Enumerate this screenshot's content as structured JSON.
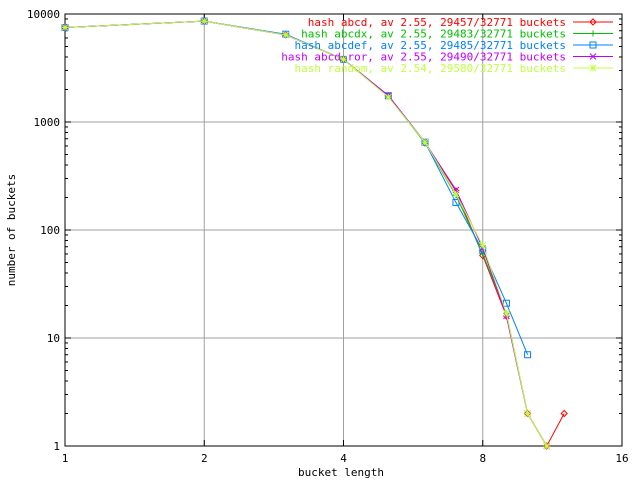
{
  "chart_data": {
    "type": "line",
    "title": "",
    "xlabel": "bucket length",
    "ylabel": "number of buckets",
    "x_scale": "log2",
    "y_scale": "log10",
    "xlim": [
      1,
      16
    ],
    "ylim": [
      1,
      10000
    ],
    "grid": true,
    "legend_position": "top-right",
    "x_ticks": [
      "1",
      "2",
      "4",
      "8",
      "16"
    ],
    "y_ticks": [
      "1",
      "10",
      "100",
      "1000",
      "10000"
    ],
    "series": [
      {
        "name": "hash abcd, av 2.55, 29457/32771 buckets",
        "color": "#ff0000",
        "marker": "diamond",
        "points": [
          [
            1,
            7500
          ],
          [
            2,
            8600
          ],
          [
            3,
            6400
          ],
          [
            4,
            3800
          ],
          [
            5,
            1750
          ],
          [
            6,
            640
          ],
          [
            7,
            230
          ],
          [
            8,
            58
          ],
          [
            9,
            16
          ],
          [
            10,
            2
          ],
          [
            11,
            1
          ],
          [
            12,
            2
          ]
        ]
      },
      {
        "name": "hash abcdx, av 2.55, 29483/32771 buckets",
        "color": "#00c000",
        "marker": "plus",
        "points": [
          [
            1,
            7500
          ],
          [
            2,
            8600
          ],
          [
            3,
            6400
          ],
          [
            4,
            3800
          ],
          [
            5,
            1720
          ],
          [
            6,
            640
          ],
          [
            7,
            210
          ],
          [
            8,
            60
          ],
          [
            9,
            17
          ],
          [
            10,
            2
          ],
          [
            11,
            1
          ]
        ]
      },
      {
        "name": "hash abcdef, av 2.55, 29485/32771 buckets",
        "color": "#0080ff",
        "marker": "square",
        "points": [
          [
            1,
            7500
          ],
          [
            2,
            8600
          ],
          [
            3,
            6500
          ],
          [
            4,
            3800
          ],
          [
            5,
            1750
          ],
          [
            6,
            650
          ],
          [
            7,
            180
          ],
          [
            8,
            65
          ],
          [
            9,
            21
          ],
          [
            10,
            7
          ]
        ]
      },
      {
        "name": "hash abcd ror, av 2.55, 29490/32771 buckets",
        "color": "#c000ff",
        "marker": "cross",
        "points": [
          [
            1,
            7500
          ],
          [
            2,
            8600
          ],
          [
            3,
            6400
          ],
          [
            4,
            3800
          ],
          [
            5,
            1760
          ],
          [
            6,
            650
          ],
          [
            7,
            235
          ],
          [
            8,
            68
          ],
          [
            9,
            16
          ],
          [
            10,
            2
          ],
          [
            11,
            1
          ]
        ]
      },
      {
        "name": "hash random, av 2.54, 29580/32771 buckets",
        "color": "#c0ff40",
        "marker": "star",
        "points": [
          [
            1,
            7500
          ],
          [
            2,
            8600
          ],
          [
            3,
            6400
          ],
          [
            4,
            3800
          ],
          [
            5,
            1700
          ],
          [
            6,
            650
          ],
          [
            7,
            215
          ],
          [
            8,
            72
          ],
          [
            9,
            17
          ],
          [
            10,
            2
          ],
          [
            11,
            1
          ]
        ]
      }
    ]
  }
}
